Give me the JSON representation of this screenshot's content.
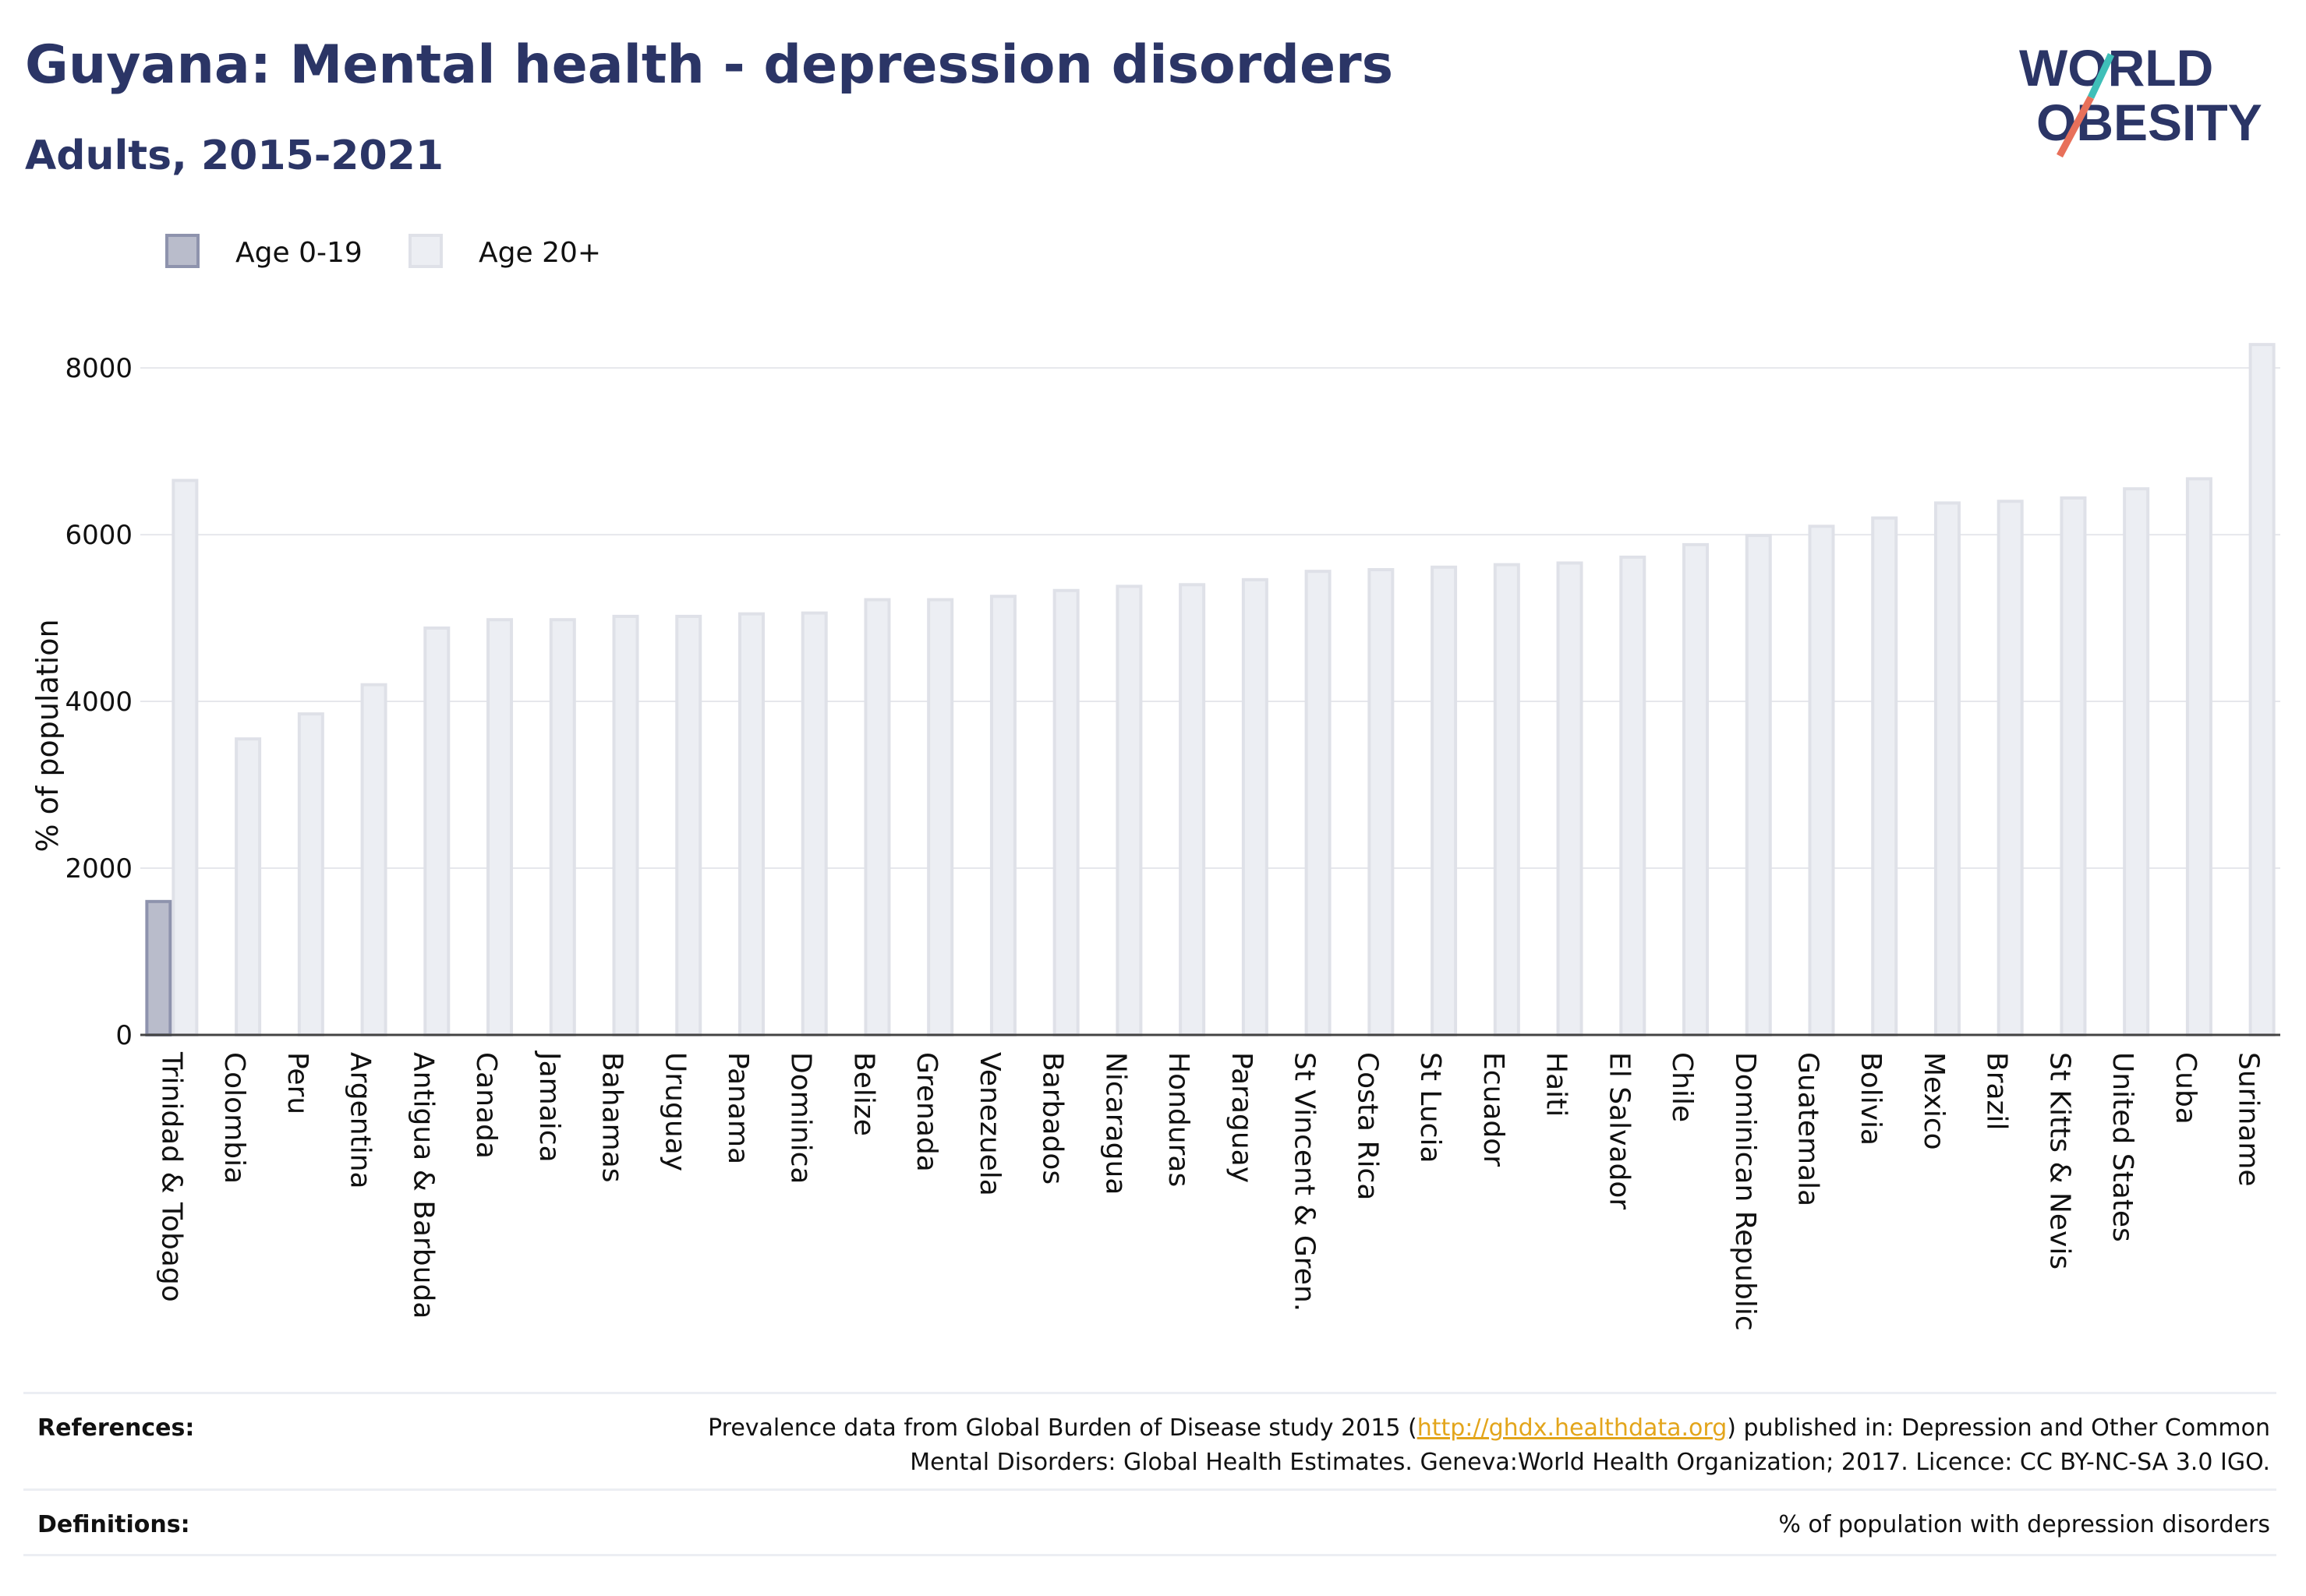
{
  "header": {
    "title": "Guyana: Mental health - depression disorders",
    "subtitle": "Adults, 2015-2021"
  },
  "logo": {
    "line1": "WORLD",
    "line2": "OBESITY"
  },
  "legend": [
    {
      "label": "Age 0-19",
      "color": "#b9bccb"
    },
    {
      "label": "Age 20+",
      "color": "#eceef3"
    }
  ],
  "chart_data": {
    "type": "bar",
    "ylabel": "% of population",
    "xlabel": "",
    "ylim": [
      0,
      8300
    ],
    "yticks": [
      0,
      2000,
      4000,
      6000,
      8000
    ],
    "grid": true,
    "legend_position": "top-left",
    "categories": [
      "Trinidad & Tobago",
      "Colombia",
      "Peru",
      "Argentina",
      "Antigua & Barbuda",
      "Canada",
      "Jamaica",
      "Bahamas",
      "Uruguay",
      "Panama",
      "Dominica",
      "Belize",
      "Grenada",
      "Venezuela",
      "Barbados",
      "Nicaragua",
      "Honduras",
      "Paraguay",
      "St Vincent & Gren.",
      "Costa Rica",
      "St Lucia",
      "Ecuador",
      "Haiti",
      "El Salvador",
      "Chile",
      "Dominican Republic",
      "Guatemala",
      "Bolivia",
      "Mexico",
      "Brazil",
      "St Kitts & Nevis",
      "United States",
      "Cuba",
      "Suriname"
    ],
    "series": [
      {
        "name": "Age 0-19",
        "color": "#b9bccb",
        "stroke": "#8e93ad",
        "values": [
          1600,
          null,
          null,
          null,
          null,
          null,
          null,
          null,
          null,
          null,
          null,
          null,
          null,
          null,
          null,
          null,
          null,
          null,
          null,
          null,
          null,
          null,
          null,
          null,
          null,
          null,
          null,
          null,
          null,
          null,
          null,
          null,
          null,
          null
        ]
      },
      {
        "name": "Age 20+",
        "color": "#eceef3",
        "stroke": "#dfe1e8",
        "values": [
          6650,
          3550,
          3850,
          4200,
          4880,
          4980,
          4980,
          5020,
          5020,
          5050,
          5060,
          5220,
          5220,
          5260,
          5330,
          5380,
          5400,
          5460,
          5560,
          5580,
          5610,
          5640,
          5660,
          5730,
          5880,
          5990,
          6100,
          6200,
          6380,
          6400,
          6440,
          6550,
          6670,
          8280
        ]
      }
    ]
  },
  "references": {
    "label": "References:",
    "text_before": "Prevalence data from Global Burden of Disease study 2015 (",
    "link": "http://ghdx.healthdata.org",
    "text_after": ") published in: Depression and Other Common",
    "line2": "Mental Disorders: Global Health Estimates. Geneva:World Health Organization; 2017. Licence: CC BY-NC-SA 3.0 IGO."
  },
  "definitions": {
    "label": "Definitions:",
    "text": "% of population with depression disorders"
  }
}
